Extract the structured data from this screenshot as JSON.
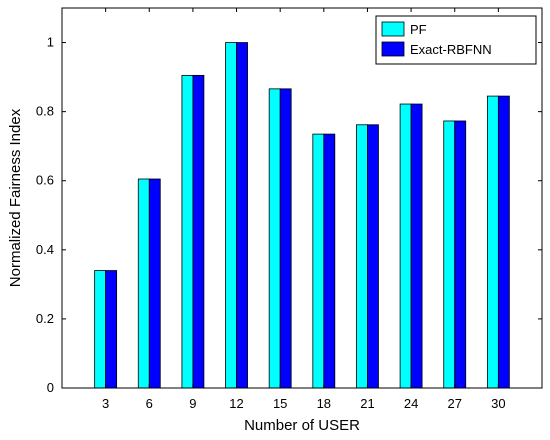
{
  "chart_data": {
    "type": "bar",
    "categories": [
      "3",
      "6",
      "9",
      "12",
      "15",
      "18",
      "21",
      "24",
      "27",
      "30"
    ],
    "series": [
      {
        "name": "PF",
        "color": "#00ffff",
        "values": [
          0.34,
          0.605,
          0.905,
          1.0,
          0.866,
          0.735,
          0.762,
          0.822,
          0.773,
          0.845
        ]
      },
      {
        "name": "Exact-RBFNN",
        "color": "#0000ff",
        "values": [
          0.34,
          0.605,
          0.905,
          1.0,
          0.866,
          0.735,
          0.762,
          0.822,
          0.773,
          0.845
        ]
      }
    ],
    "xlabel": "Number of USER",
    "ylabel": "Normalized Fairness Index",
    "ylim": [
      0,
      1.1
    ],
    "yticks": [
      "0",
      "0.2",
      "0.4",
      "0.6",
      "0.8",
      "1"
    ],
    "xlim": [
      0,
      33
    ],
    "grid": false,
    "legend_position": "top-right"
  }
}
